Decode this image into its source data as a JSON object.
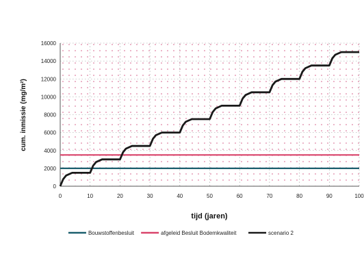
{
  "chart_data": {
    "type": "line",
    "xlabel": "tijd (jaren)",
    "ylabel": "cum. inmissie (mg/m²)",
    "xlim": [
      0,
      100
    ],
    "ylim": [
      0,
      16000
    ],
    "x_ticks": [
      "0",
      "10",
      "20",
      "30",
      "40",
      "50",
      "60",
      "70",
      "80",
      "90",
      "100"
    ],
    "y_ticks": [
      "0",
      "2000",
      "4000",
      "6000",
      "8000",
      "10000",
      "12000",
      "14000",
      "16000"
    ],
    "grid": true,
    "legend_position": "bottom",
    "series": [
      {
        "name": "Bouwstoffenbesluit",
        "color": "#1b5f6e",
        "x": [
          0,
          100
        ],
        "y": [
          2000,
          2000
        ]
      },
      {
        "name": "afgeleid Besluit Bodemkwaliteit",
        "color": "#d9436a",
        "x": [
          0,
          100
        ],
        "y": [
          3500,
          3500
        ]
      },
      {
        "name": "scenario 2",
        "color": "#1a1a1a",
        "x": [
          0,
          1,
          2,
          4,
          10,
          11,
          12,
          14,
          20,
          21,
          22,
          24,
          30,
          31,
          32,
          34,
          40,
          41,
          42,
          44,
          50,
          51,
          52,
          54,
          60,
          61,
          62,
          64,
          70,
          71,
          72,
          74,
          80,
          81,
          82,
          84,
          90,
          91,
          92,
          94,
          100
        ],
        "y": [
          0,
          800,
          1200,
          1500,
          1500,
          2300,
          2700,
          3000,
          3000,
          3800,
          4200,
          4500,
          4500,
          5300,
          5700,
          6000,
          6000,
          6800,
          7200,
          7500,
          7500,
          8300,
          8700,
          9000,
          9000,
          9800,
          10200,
          10500,
          10500,
          11300,
          11700,
          12000,
          12000,
          12800,
          13200,
          13500,
          13500,
          14300,
          14700,
          15000,
          15000
        ]
      }
    ]
  }
}
